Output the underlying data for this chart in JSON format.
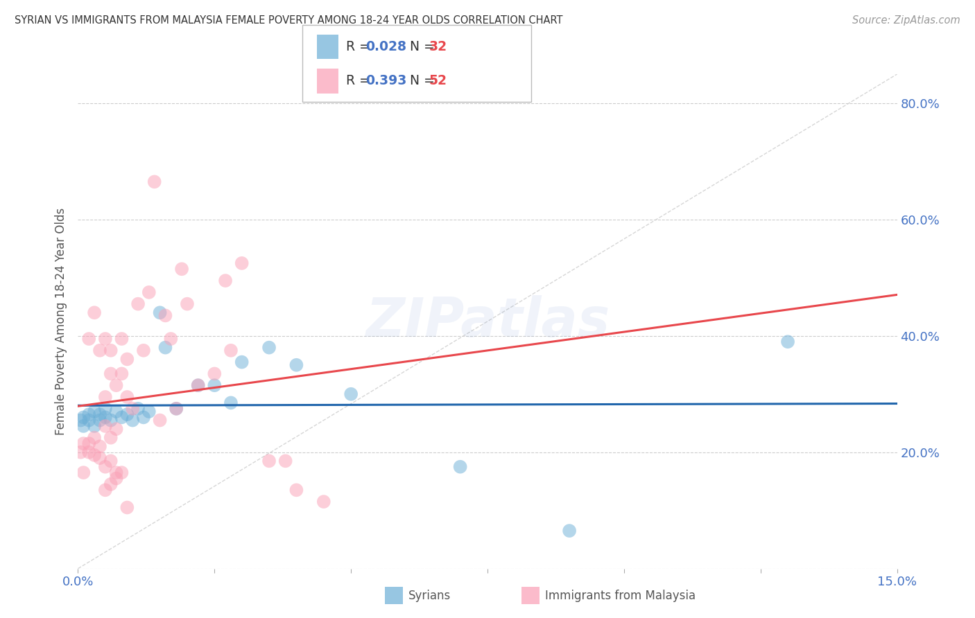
{
  "title": "SYRIAN VS IMMIGRANTS FROM MALAYSIA FEMALE POVERTY AMONG 18-24 YEAR OLDS CORRELATION CHART",
  "source": "Source: ZipAtlas.com",
  "ylabel_label": "Female Poverty Among 18-24 Year Olds",
  "xlim": [
    0.0,
    0.15
  ],
  "ylim": [
    0.0,
    0.85
  ],
  "xtick_values": [
    0.0,
    0.025,
    0.05,
    0.075,
    0.1,
    0.125,
    0.15
  ],
  "xtick_labels": [
    "0.0%",
    "",
    "",
    "",
    "",
    "",
    "15.0%"
  ],
  "ytick_values": [
    0.0,
    0.2,
    0.4,
    0.6,
    0.8
  ],
  "ytick_labels": [
    "",
    "20.0%",
    "40.0%",
    "60.0%",
    "80.0%"
  ],
  "legend_r1": "0.028",
  "legend_n1": "32",
  "legend_r2": "0.393",
  "legend_n2": "52",
  "color_syrians": "#6baed6",
  "color_malaysia": "#fa9fb5",
  "color_trendline_syrians": "#2166ac",
  "color_trendline_malaysia": "#e8474c",
  "color_diagonal": "#cccccc",
  "watermark": "ZIPatlas",
  "syrians_x": [
    0.0005,
    0.001,
    0.001,
    0.002,
    0.002,
    0.003,
    0.003,
    0.004,
    0.004,
    0.005,
    0.005,
    0.006,
    0.007,
    0.008,
    0.009,
    0.01,
    0.011,
    0.012,
    0.013,
    0.015,
    0.016,
    0.018,
    0.022,
    0.025,
    0.028,
    0.03,
    0.035,
    0.04,
    0.05,
    0.07,
    0.09,
    0.13
  ],
  "syrians_y": [
    0.255,
    0.245,
    0.26,
    0.255,
    0.265,
    0.245,
    0.27,
    0.255,
    0.265,
    0.26,
    0.275,
    0.255,
    0.27,
    0.26,
    0.265,
    0.255,
    0.275,
    0.26,
    0.27,
    0.44,
    0.38,
    0.275,
    0.315,
    0.315,
    0.285,
    0.355,
    0.38,
    0.35,
    0.3,
    0.175,
    0.065,
    0.39
  ],
  "malaysia_x": [
    0.0005,
    0.001,
    0.001,
    0.002,
    0.002,
    0.002,
    0.003,
    0.003,
    0.003,
    0.004,
    0.004,
    0.004,
    0.005,
    0.005,
    0.005,
    0.005,
    0.006,
    0.006,
    0.006,
    0.006,
    0.007,
    0.007,
    0.007,
    0.008,
    0.008,
    0.009,
    0.009,
    0.01,
    0.011,
    0.012,
    0.013,
    0.014,
    0.015,
    0.016,
    0.017,
    0.018,
    0.019,
    0.02,
    0.022,
    0.025,
    0.027,
    0.028,
    0.03,
    0.035,
    0.038,
    0.04,
    0.045,
    0.005,
    0.006,
    0.007,
    0.008,
    0.009
  ],
  "malaysia_y": [
    0.2,
    0.165,
    0.215,
    0.2,
    0.215,
    0.395,
    0.195,
    0.225,
    0.44,
    0.19,
    0.21,
    0.375,
    0.175,
    0.245,
    0.295,
    0.395,
    0.185,
    0.225,
    0.335,
    0.375,
    0.165,
    0.24,
    0.315,
    0.335,
    0.395,
    0.295,
    0.36,
    0.275,
    0.455,
    0.375,
    0.475,
    0.665,
    0.255,
    0.435,
    0.395,
    0.275,
    0.515,
    0.455,
    0.315,
    0.335,
    0.495,
    0.375,
    0.525,
    0.185,
    0.185,
    0.135,
    0.115,
    0.135,
    0.145,
    0.155,
    0.165,
    0.105
  ]
}
